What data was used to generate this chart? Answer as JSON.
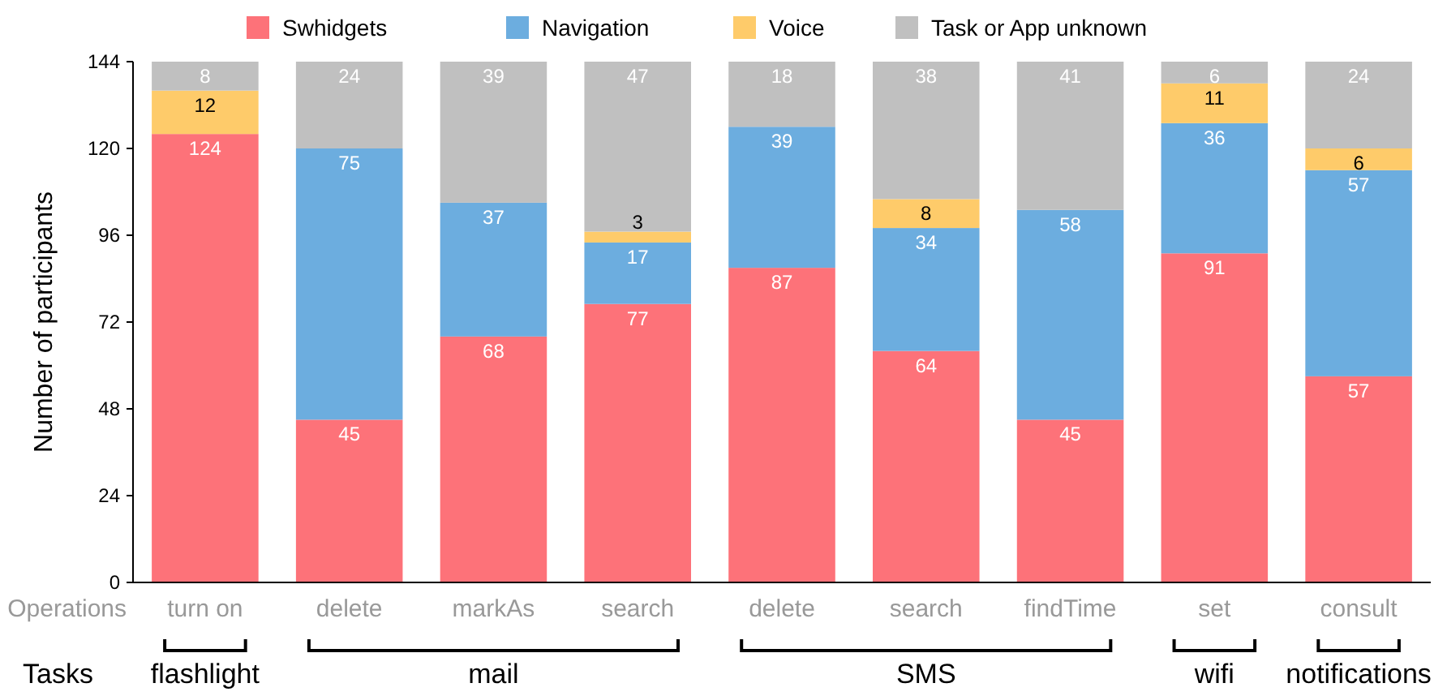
{
  "chart_data": {
    "type": "bar",
    "stacked": true,
    "ylabel": "Number of participants",
    "categories": [
      "turn on",
      "delete",
      "markAs",
      "search",
      "delete",
      "search",
      "findTime",
      "set",
      "consult"
    ],
    "series": [
      {
        "name": "Swhidgets",
        "color": "#fd7279",
        "values": [
          124,
          45,
          68,
          77,
          87,
          64,
          45,
          91,
          57
        ]
      },
      {
        "name": "Navigation",
        "color": "#6caddf",
        "values": [
          null,
          75,
          37,
          17,
          39,
          34,
          58,
          36,
          57
        ]
      },
      {
        "name": "Voice",
        "color": "#fecb6a",
        "values": [
          12,
          null,
          null,
          3,
          null,
          8,
          null,
          11,
          6
        ]
      },
      {
        "name": "Task or App unknown",
        "color": "#c0c0c0",
        "values": [
          8,
          24,
          39,
          47,
          18,
          38,
          41,
          6,
          24
        ]
      }
    ],
    "ylim": [
      0,
      144
    ],
    "yticks": [
      0,
      24,
      48,
      72,
      96,
      120,
      144
    ],
    "data_labels": true,
    "legend": "top",
    "grid": false,
    "annotations": [
      "Operations",
      "Tasks",
      "flashlight",
      "mail",
      "SMS",
      "wifi",
      "notifications"
    ]
  }
}
